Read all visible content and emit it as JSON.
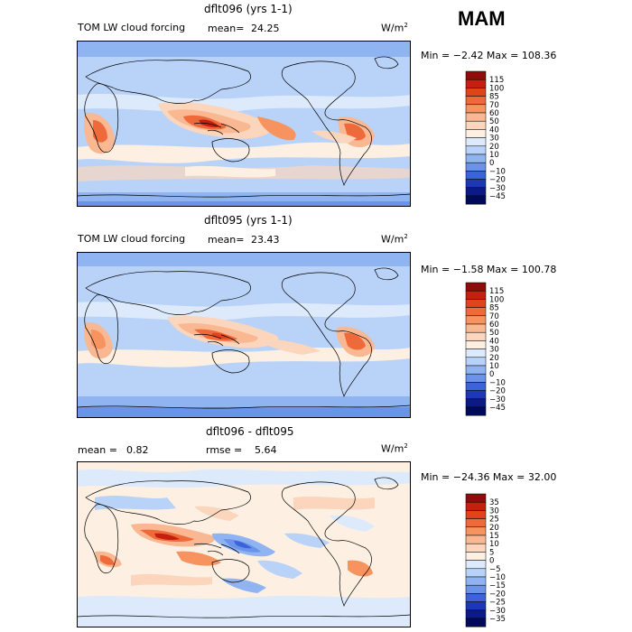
{
  "season": "MAM",
  "panels": [
    {
      "title": "dflt096 (yrs 1-1)",
      "left_label": "TOM LW cloud forcing",
      "stat_label": "mean=",
      "stat_value": "24.25",
      "units": "W/m",
      "units_sup": "2",
      "minmax": "Min =  −2.42 Max = 108.36",
      "colorbar": {
        "labels": [
          "115",
          "100",
          "85",
          "70",
          "60",
          "50",
          "40",
          "30",
          "20",
          "10",
          "0",
          "−10",
          "−20",
          "−30",
          "−45"
        ],
        "colors": [
          "#8e0c0c",
          "#c3200f",
          "#e0441b",
          "#ef6a3a",
          "#f6935f",
          "#f9b792",
          "#fbd6bd",
          "#fdf0e3",
          "#dceafb",
          "#b9d2f7",
          "#8fb4f1",
          "#6a93e9",
          "#3d63d8",
          "#1c38b5",
          "#0b1a86",
          "#000a5c"
        ]
      }
    },
    {
      "title": "dflt095 (yrs 1-1)",
      "left_label": "TOM LW cloud forcing",
      "stat_label": "mean=",
      "stat_value": "23.43",
      "units": "W/m",
      "units_sup": "2",
      "minmax": "Min =  −1.58 Max = 100.78",
      "colorbar": {
        "labels": [
          "115",
          "100",
          "85",
          "70",
          "60",
          "50",
          "40",
          "30",
          "20",
          "10",
          "0",
          "−10",
          "−20",
          "−30",
          "−45"
        ],
        "colors": [
          "#8e0c0c",
          "#c3200f",
          "#e0441b",
          "#ef6a3a",
          "#f6935f",
          "#f9b792",
          "#fbd6bd",
          "#fdf0e3",
          "#dceafb",
          "#b9d2f7",
          "#8fb4f1",
          "#6a93e9",
          "#3d63d8",
          "#1c38b5",
          "#0b1a86",
          "#000a5c"
        ]
      }
    },
    {
      "title": "dflt096 - dflt095",
      "left_label": "mean =",
      "left_value": "0.82",
      "stat_label": "rmse =",
      "stat_value": "5.64",
      "units": "W/m",
      "units_sup": "2",
      "minmax": "Min = −24.36 Max =  32.00",
      "colorbar": {
        "labels": [
          "35",
          "30",
          "25",
          "20",
          "15",
          "10",
          "5",
          "0",
          "−5",
          "−10",
          "−15",
          "−20",
          "−25",
          "−30",
          "−35"
        ],
        "colors": [
          "#8e0c0c",
          "#c3200f",
          "#e0441b",
          "#ef6a3a",
          "#f6935f",
          "#f9b792",
          "#fbd6bd",
          "#fdf0e3",
          "#dceafb",
          "#b9d2f7",
          "#8fb4f1",
          "#6a93e9",
          "#3d63d8",
          "#1c38b5",
          "#0b1a86",
          "#000a5c"
        ]
      }
    }
  ],
  "chart_data": [
    {
      "type": "heatmap",
      "title": "dflt096 (yrs 1-1)",
      "variable": "TOM LW cloud forcing",
      "units": "W/m2",
      "mean": 24.25,
      "min": -2.42,
      "max": 108.36,
      "colorbar_levels": [
        -45,
        -30,
        -20,
        -10,
        0,
        10,
        20,
        30,
        40,
        50,
        60,
        70,
        85,
        100,
        115
      ]
    },
    {
      "type": "heatmap",
      "title": "dflt095 (yrs 1-1)",
      "variable": "TOM LW cloud forcing",
      "units": "W/m2",
      "mean": 23.43,
      "min": -1.58,
      "max": 100.78,
      "colorbar_levels": [
        -45,
        -30,
        -20,
        -10,
        0,
        10,
        20,
        30,
        40,
        50,
        60,
        70,
        85,
        100,
        115
      ]
    },
    {
      "type": "heatmap",
      "title": "dflt096 - dflt095",
      "units": "W/m2",
      "mean": 0.82,
      "rmse": 5.64,
      "min": -24.36,
      "max": 32.0,
      "colorbar_levels": [
        -35,
        -30,
        -25,
        -20,
        -15,
        -10,
        -5,
        0,
        5,
        10,
        15,
        20,
        25,
        30,
        35
      ]
    }
  ]
}
